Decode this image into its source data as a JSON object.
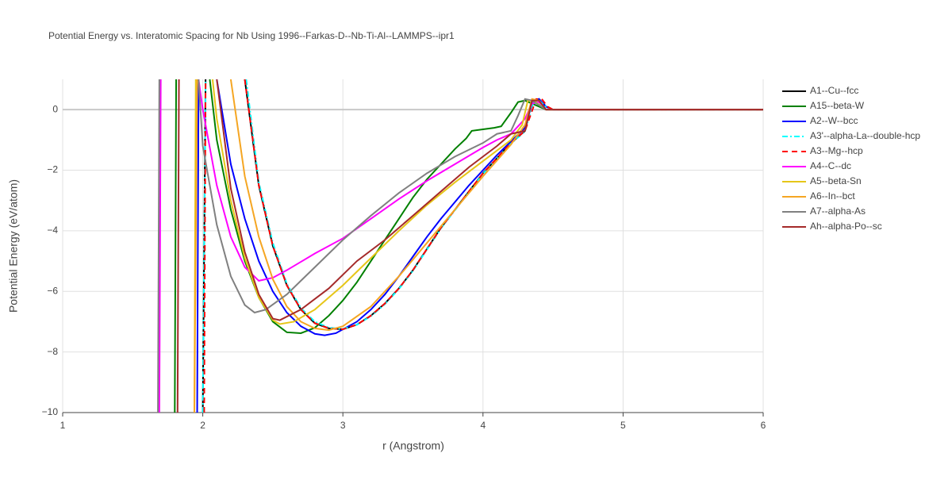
{
  "chart_data": {
    "type": "line",
    "title": "Potential Energy vs. Interatomic Spacing for Nb Using 1996--Farkas-D--Nb-Ti-Al--LAMMPS--ipr1",
    "x_label": "r (Angstrom)",
    "y_label": "Potential Energy (eV/atom)",
    "xlim": [
      1,
      6
    ],
    "ylim": [
      -10,
      1
    ],
    "xticks": [
      1,
      2,
      3,
      4,
      5,
      6
    ],
    "yticks": [
      {
        "value": -10,
        "label": "−10"
      },
      {
        "value": -8,
        "label": "−8"
      },
      {
        "value": -6,
        "label": "−6"
      },
      {
        "value": -4,
        "label": "−4"
      },
      {
        "value": -2,
        "label": "−2"
      },
      0
    ],
    "grid": true,
    "legend": "right",
    "series": [
      {
        "name": "A1--Cu--fcc",
        "color": "#000000",
        "dash": "solid",
        "x": [
          2.0,
          2.02,
          null,
          2.3,
          2.4,
          2.5,
          2.6,
          2.7,
          2.8,
          2.9,
          3.0,
          3.1,
          3.2,
          3.3,
          3.4,
          3.5,
          3.6,
          3.7,
          3.8,
          3.9,
          4.0,
          4.1,
          4.2,
          4.3,
          4.35,
          4.4,
          4.45,
          4.5,
          6
        ],
        "values": [
          -10,
          1,
          null,
          1,
          -2.5,
          -4.5,
          -5.8,
          -6.6,
          -7.05,
          -7.22,
          -7.25,
          -7.1,
          -6.8,
          -6.4,
          -5.9,
          -5.3,
          -4.6,
          -3.9,
          -3.3,
          -2.7,
          -2.1,
          -1.6,
          -1.1,
          -0.7,
          0.3,
          0.35,
          0.1,
          0,
          0
        ]
      },
      {
        "name": "A15--beta-W",
        "color": "#008000",
        "dash": "solid",
        "x": [
          1.8,
          1.81,
          null,
          2.05,
          2.1,
          2.2,
          2.3,
          2.4,
          2.5,
          2.6,
          2.7,
          2.8,
          2.9,
          3.0,
          3.1,
          3.2,
          3.3,
          3.4,
          3.5,
          3.6,
          3.7,
          3.8,
          3.88,
          3.92,
          4.0,
          4.08,
          4.13,
          4.2,
          4.25,
          4.3,
          4.35,
          4.45,
          6
        ],
        "values": [
          -10,
          1,
          null,
          1,
          -1,
          -3.3,
          -5,
          -6.2,
          -7,
          -7.35,
          -7.38,
          -7.2,
          -6.8,
          -6.3,
          -5.7,
          -5,
          -4.3,
          -3.6,
          -2.9,
          -2.3,
          -1.8,
          -1.3,
          -0.95,
          -0.7,
          -0.65,
          -0.6,
          -0.55,
          -0.1,
          0.25,
          0.3,
          0.2,
          0,
          0
        ]
      },
      {
        "name": "A2--W--bcc",
        "color": "#0000ff",
        "dash": "solid",
        "x": [
          1.96,
          1.97,
          null,
          2.1,
          2.2,
          2.3,
          2.4,
          2.5,
          2.6,
          2.7,
          2.8,
          2.87,
          2.95,
          3.1,
          3.2,
          3.3,
          3.4,
          3.5,
          3.6,
          3.7,
          3.8,
          3.9,
          4.0,
          4.1,
          4.2,
          4.3,
          4.35,
          4.4,
          4.45,
          4.5,
          6
        ],
        "values": [
          -10,
          1,
          null,
          1,
          -1.8,
          -3.6,
          -5,
          -6,
          -6.7,
          -7.15,
          -7.4,
          -7.45,
          -7.38,
          -7,
          -6.6,
          -6.1,
          -5.5,
          -4.85,
          -4.2,
          -3.6,
          -3.05,
          -2.5,
          -2,
          -1.5,
          -1.05,
          -0.6,
          0.2,
          0.35,
          0.1,
          0,
          0
        ]
      },
      {
        "name": "A3'--alpha-La--double-hcp",
        "color": "#00ffff",
        "dash": "dashdot",
        "x": [
          2.0,
          2.02,
          null,
          2.31,
          2.4,
          2.5,
          2.6,
          2.7,
          2.8,
          2.9,
          3.0,
          3.1,
          3.2,
          3.3,
          3.4,
          3.5,
          3.6,
          3.7,
          3.8,
          3.9,
          4.0,
          4.1,
          4.2,
          4.3,
          4.36,
          4.4,
          4.45,
          4.5,
          6
        ],
        "values": [
          -10,
          1,
          null,
          1,
          -2.4,
          -4.4,
          -5.75,
          -6.55,
          -7.0,
          -7.2,
          -7.24,
          -7.1,
          -6.82,
          -6.42,
          -5.92,
          -5.32,
          -4.62,
          -3.92,
          -3.32,
          -2.72,
          -2.12,
          -1.62,
          -1.12,
          -0.72,
          0.25,
          0.3,
          0.1,
          0,
          0
        ]
      },
      {
        "name": "A3--Mg--hcp",
        "color": "#ff0000",
        "dash": "dash",
        "x": [
          2.01,
          2.02,
          null,
          2.3,
          2.4,
          2.5,
          2.6,
          2.7,
          2.8,
          2.9,
          3.0,
          3.1,
          3.2,
          3.3,
          3.4,
          3.5,
          3.6,
          3.7,
          3.8,
          3.9,
          4.0,
          4.1,
          4.2,
          4.3,
          4.38,
          4.42,
          4.46,
          4.5,
          6
        ],
        "values": [
          -10,
          1,
          null,
          1,
          -2.5,
          -4.5,
          -5.8,
          -6.6,
          -7.05,
          -7.22,
          -7.25,
          -7.1,
          -6.8,
          -6.4,
          -5.9,
          -5.3,
          -4.6,
          -3.9,
          -3.3,
          -2.7,
          -2.1,
          -1.6,
          -1.1,
          -0.7,
          0.35,
          0.35,
          0.1,
          0,
          0
        ]
      },
      {
        "name": "A4--C--dc",
        "color": "#ff00ff",
        "dash": "solid",
        "x": [
          1.69,
          1.7,
          null,
          1.97,
          2.0,
          2.1,
          2.2,
          2.3,
          2.4,
          2.5,
          2.6,
          2.8,
          3.0,
          3.2,
          3.4,
          3.6,
          3.8,
          4.0,
          4.1,
          4.2,
          4.3,
          4.35,
          4.4,
          4.45,
          6
        ],
        "values": [
          -10,
          1,
          null,
          1,
          0,
          -2.5,
          -4.2,
          -5.2,
          -5.65,
          -5.55,
          -5.3,
          -4.75,
          -4.25,
          -3.6,
          -2.95,
          -2.35,
          -1.8,
          -1.25,
          -1,
          -0.8,
          -0.3,
          0.2,
          0.25,
          0,
          0
        ]
      },
      {
        "name": "A5--beta-Sn",
        "color": "#e6c619",
        "dash": "solid",
        "x": [
          1.94,
          1.95,
          null,
          2.07,
          2.1,
          2.2,
          2.3,
          2.4,
          2.5,
          2.55,
          2.65,
          2.8,
          3.0,
          3.2,
          3.4,
          3.6,
          3.8,
          4.0,
          4.2,
          4.28,
          4.32,
          4.36,
          4.45,
          6
        ],
        "values": [
          -10,
          1,
          null,
          1,
          -0.3,
          -3,
          -4.9,
          -6.2,
          -6.95,
          -7.08,
          -7,
          -6.6,
          -5.8,
          -4.9,
          -4,
          -3.15,
          -2.4,
          -1.7,
          -1,
          -0.5,
          0.3,
          0.3,
          0,
          0
        ]
      },
      {
        "name": "A6--In--bct",
        "color": "#f5a623",
        "dash": "solid",
        "x": [
          1.94,
          1.96,
          null,
          2.2,
          2.3,
          2.4,
          2.5,
          2.6,
          2.7,
          2.8,
          2.9,
          3.0,
          3.2,
          3.4,
          3.6,
          3.8,
          4.0,
          4.2,
          4.3,
          4.35,
          4.4,
          4.45,
          6
        ],
        "values": [
          -10,
          1,
          null,
          1,
          -2.2,
          -4.2,
          -5.6,
          -6.5,
          -7,
          -7.22,
          -7.28,
          -7.15,
          -6.5,
          -5.5,
          -4.4,
          -3.3,
          -2.2,
          -1.15,
          -0.5,
          0.35,
          0.3,
          0,
          0
        ]
      },
      {
        "name": "A7--alpha-As",
        "color": "#808080",
        "dash": "solid",
        "x": [
          1.68,
          1.69,
          null,
          1.97,
          2.0,
          2.1,
          2.2,
          2.3,
          2.37,
          2.45,
          2.6,
          2.8,
          3.0,
          3.2,
          3.4,
          3.6,
          3.8,
          4.0,
          4.1,
          4.2,
          4.25,
          4.3,
          4.35,
          4.45,
          6
        ],
        "values": [
          -10,
          1,
          null,
          1,
          -1.2,
          -3.8,
          -5.5,
          -6.45,
          -6.7,
          -6.6,
          -6.1,
          -5.2,
          -4.3,
          -3.5,
          -2.75,
          -2.1,
          -1.55,
          -1.1,
          -0.8,
          -0.7,
          -0.2,
          0.35,
          0.3,
          0,
          0
        ]
      },
      {
        "name": "Ah--alpha-Po--sc",
        "color": "#a52a2a",
        "dash": "solid",
        "x": [
          1.82,
          1.83,
          null,
          2.1,
          2.2,
          2.3,
          2.4,
          2.5,
          2.55,
          2.7,
          2.9,
          3.1,
          3.3,
          3.5,
          3.7,
          3.9,
          4.1,
          4.2,
          4.3,
          4.35,
          4.4,
          4.45,
          6
        ],
        "values": [
          -10,
          1,
          null,
          1,
          -2.6,
          -4.7,
          -6.1,
          -6.9,
          -6.95,
          -6.6,
          -5.9,
          -5,
          -4.3,
          -3.5,
          -2.7,
          -1.9,
          -1.2,
          -0.8,
          -0.7,
          0.3,
          0.3,
          0,
          0
        ]
      }
    ]
  }
}
